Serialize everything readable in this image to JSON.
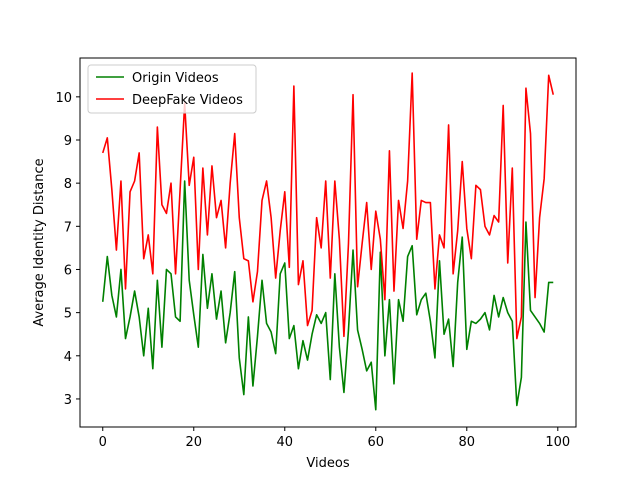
{
  "chart_data": {
    "type": "line",
    "xlabel": "Videos",
    "ylabel": "Average Identity Distance",
    "xlim": [
      -5,
      104
    ],
    "ylim": [
      2.35,
      10.9
    ],
    "xticks": [
      0,
      20,
      40,
      60,
      80,
      100
    ],
    "yticks": [
      3,
      4,
      5,
      6,
      7,
      8,
      9,
      10
    ],
    "xtick_labels": [
      "0",
      "20",
      "40",
      "60",
      "80",
      "100"
    ],
    "ytick_labels": [
      "3",
      "4",
      "5",
      "6",
      "7",
      "8",
      "9",
      "10"
    ],
    "grid": false,
    "legend_position": "top-left",
    "series": [
      {
        "name": "Origin Videos",
        "color": "#008000",
        "x": [
          0,
          1,
          2,
          3,
          4,
          5,
          6,
          7,
          8,
          9,
          10,
          11,
          12,
          13,
          14,
          15,
          16,
          17,
          18,
          19,
          20,
          21,
          22,
          23,
          24,
          25,
          26,
          27,
          28,
          29,
          30,
          31,
          32,
          33,
          34,
          35,
          36,
          37,
          38,
          39,
          40,
          41,
          42,
          43,
          44,
          45,
          46,
          47,
          48,
          49,
          50,
          51,
          52,
          53,
          54,
          55,
          56,
          57,
          58,
          59,
          60,
          61,
          62,
          63,
          64,
          65,
          66,
          67,
          68,
          69,
          70,
          71,
          72,
          73,
          74,
          75,
          76,
          77,
          78,
          79,
          80,
          81,
          82,
          83,
          84,
          85,
          86,
          87,
          88,
          89,
          90,
          91,
          92,
          93,
          94,
          95,
          96,
          97,
          98,
          99
        ],
        "values": [
          5.25,
          6.3,
          5.4,
          4.9,
          6.0,
          4.4,
          4.9,
          5.5,
          4.9,
          4.0,
          5.1,
          3.7,
          5.75,
          4.2,
          6.0,
          5.9,
          4.9,
          4.8,
          8.05,
          5.75,
          4.95,
          4.2,
          6.35,
          5.1,
          5.9,
          4.85,
          5.5,
          4.3,
          5.0,
          5.95,
          3.95,
          3.1,
          4.9,
          3.3,
          4.45,
          5.75,
          4.75,
          4.55,
          4.05,
          5.9,
          6.15,
          4.4,
          4.7,
          3.7,
          4.35,
          3.9,
          4.5,
          4.95,
          4.75,
          5.0,
          3.45,
          5.9,
          4.2,
          3.15,
          4.6,
          6.45,
          4.6,
          4.15,
          3.65,
          3.85,
          2.75,
          6.4,
          4.0,
          5.3,
          3.35,
          5.3,
          4.8,
          6.3,
          6.55,
          4.95,
          5.3,
          5.45,
          4.8,
          3.95,
          6.2,
          4.5,
          4.85,
          3.75,
          5.7,
          6.75,
          4.15,
          4.8,
          4.75,
          4.85,
          5.0,
          4.6,
          5.4,
          4.9,
          5.35,
          5.0,
          4.8,
          2.85,
          3.5,
          7.1,
          5.05,
          4.9,
          4.75,
          4.55,
          5.7,
          5.7
        ]
      },
      {
        "name": "DeepFake Videos",
        "color": "#ff0000",
        "x": [
          0,
          1,
          2,
          3,
          4,
          5,
          6,
          7,
          8,
          9,
          10,
          11,
          12,
          13,
          14,
          15,
          16,
          17,
          18,
          19,
          20,
          21,
          22,
          23,
          24,
          25,
          26,
          27,
          28,
          29,
          30,
          31,
          32,
          33,
          34,
          35,
          36,
          37,
          38,
          39,
          40,
          41,
          42,
          43,
          44,
          45,
          46,
          47,
          48,
          49,
          50,
          51,
          52,
          53,
          54,
          55,
          56,
          57,
          58,
          59,
          60,
          61,
          62,
          63,
          64,
          65,
          66,
          67,
          68,
          69,
          70,
          71,
          72,
          73,
          74,
          75,
          76,
          77,
          78,
          79,
          80,
          81,
          82,
          83,
          84,
          85,
          86,
          87,
          88,
          89,
          90,
          91,
          92,
          93,
          94,
          95,
          96,
          97,
          98,
          99
        ],
        "values": [
          8.7,
          9.05,
          7.85,
          6.45,
          8.05,
          5.55,
          7.8,
          8.05,
          8.7,
          6.25,
          6.8,
          5.9,
          9.3,
          7.5,
          7.3,
          8.0,
          5.9,
          7.85,
          9.85,
          7.95,
          8.6,
          6.0,
          8.35,
          6.8,
          8.4,
          7.2,
          7.6,
          6.5,
          8.0,
          9.15,
          7.2,
          6.25,
          6.2,
          5.25,
          5.95,
          7.6,
          8.05,
          7.2,
          5.8,
          6.9,
          7.8,
          6.05,
          10.25,
          5.65,
          6.2,
          4.7,
          5.05,
          7.2,
          6.5,
          8.05,
          5.8,
          8.05,
          6.7,
          4.45,
          6.6,
          10.05,
          5.6,
          6.6,
          7.55,
          6.0,
          7.35,
          6.7,
          5.3,
          8.75,
          5.5,
          7.6,
          6.95,
          8.05,
          10.55,
          6.7,
          7.6,
          7.55,
          7.55,
          5.55,
          6.8,
          6.5,
          9.35,
          5.9,
          6.9,
          8.5,
          6.95,
          6.25,
          7.95,
          7.85,
          7.0,
          6.8,
          7.25,
          7.1,
          9.8,
          6.15,
          8.35,
          4.4,
          4.9,
          10.2,
          9.15,
          5.35,
          7.2,
          8.1,
          10.5,
          10.05
        ]
      }
    ]
  }
}
